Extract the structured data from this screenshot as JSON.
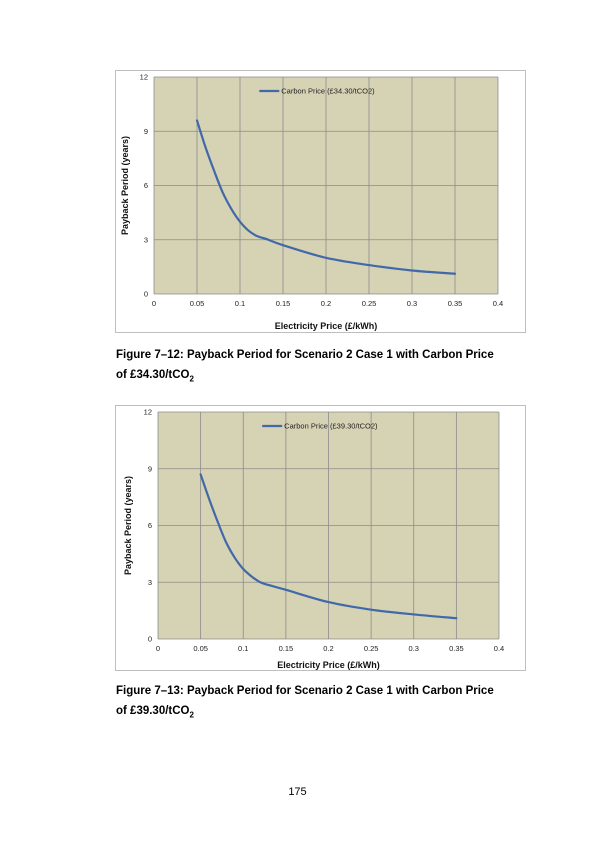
{
  "figures": [
    {
      "caption": {
        "line1": "Figure 7–12: Payback Period for Scenario 2 Case 1 with Carbon Price",
        "line2_main": "of £34.30/tCO",
        "line2_sub": "2"
      }
    },
    {
      "caption": {
        "line1": "Figure 7–13: Payback Period for Scenario 2 Case 1 with Carbon Price",
        "line2_main": "of £39.30/tCO",
        "line2_sub": "2"
      }
    }
  ],
  "page_number": "175",
  "colors": {
    "plot_background": "#d6d2b4",
    "gridline": "#8c8c8c",
    "series_line": "#4169aa",
    "frame_border": "#bfbfbf"
  },
  "chart_data": [
    {
      "type": "line",
      "title": "",
      "xlabel": "Electricity Price (£/kWh)",
      "ylabel": "Payback Period (years)",
      "xlim": [
        0,
        0.4
      ],
      "ylim": [
        0,
        12
      ],
      "x_ticks": [
        "0",
        "0.05",
        "0.1",
        "0.15",
        "0.2",
        "0.25",
        "0.3",
        "0.35",
        "0.4"
      ],
      "y_ticks": [
        "0",
        "3",
        "6",
        "9",
        "12"
      ],
      "grid": true,
      "legend": "top-center",
      "series": [
        {
          "name": "Carbon Price (£34.30/tCO2)",
          "x": [
            0.05,
            0.06,
            0.07,
            0.08,
            0.09,
            0.1,
            0.11,
            0.12,
            0.13,
            0.15,
            0.2,
            0.25,
            0.3,
            0.35
          ],
          "y": [
            9.6,
            8.1,
            6.8,
            5.6,
            4.7,
            4.0,
            3.5,
            3.2,
            3.05,
            2.7,
            2.0,
            1.6,
            1.3,
            1.12
          ]
        }
      ]
    },
    {
      "type": "line",
      "title": "",
      "xlabel": "Electricity Price (£/kWh)",
      "ylabel": "Payback Period (years)",
      "xlim": [
        0,
        0.4
      ],
      "ylim": [
        0,
        12
      ],
      "x_ticks": [
        "0",
        "0.05",
        "0.1",
        "0.15",
        "0.2",
        "0.25",
        "0.3",
        "0.35",
        "0.4"
      ],
      "y_ticks": [
        "0",
        "3",
        "6",
        "9",
        "12"
      ],
      "grid": true,
      "legend": "top-center",
      "series": [
        {
          "name": "Carbon Price (£39.30/tCO2)",
          "x": [
            0.05,
            0.06,
            0.07,
            0.08,
            0.09,
            0.1,
            0.11,
            0.12,
            0.13,
            0.15,
            0.2,
            0.25,
            0.3,
            0.35
          ],
          "y": [
            8.7,
            7.4,
            6.2,
            5.1,
            4.3,
            3.7,
            3.3,
            3.0,
            2.85,
            2.6,
            1.95,
            1.55,
            1.3,
            1.1
          ]
        }
      ]
    }
  ]
}
